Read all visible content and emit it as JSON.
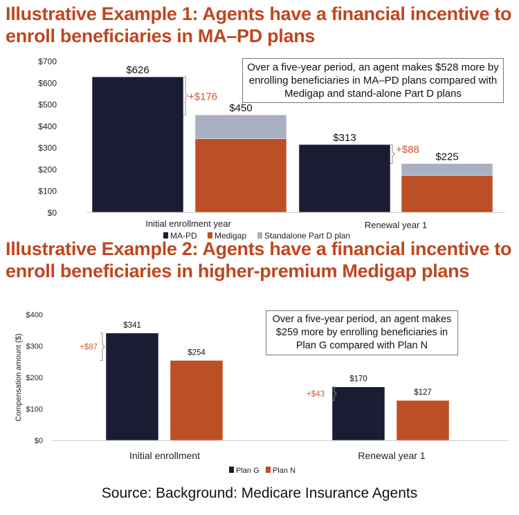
{
  "source": "Source: Background: Medicare Insurance Agents",
  "colors": {
    "dark": "#1a1c33",
    "orange": "#bd4f25",
    "gray": "#a9b0c2",
    "accent": "#d0572c"
  },
  "chart_data": [
    {
      "type": "bar",
      "stacked": true,
      "title": "Illustrative Example 1: Agents have a financial incentive to enroll beneficiaries in MA–PD plans",
      "note": "Over a five-year period, an agent makes $528 more by enrolling beneficiaries in MA–PD plans compared with Medigap and stand-alone Part D plans",
      "categories": [
        "Initial enrollment year",
        "Renewal year 1"
      ],
      "bars": [
        {
          "category": "Initial enrollment year",
          "segments": [
            {
              "series": "MA-PD",
              "value": 626
            }
          ],
          "label": "$626"
        },
        {
          "category": "Initial enrollment year",
          "segments": [
            {
              "series": "Medigap",
              "value": 340
            },
            {
              "series": "Standalone Part D plan",
              "value": 110
            }
          ],
          "label": "$450"
        },
        {
          "category": "Renewal year 1",
          "segments": [
            {
              "series": "MA-PD",
              "value": 313
            }
          ],
          "label": "$313"
        },
        {
          "category": "Renewal year 1",
          "segments": [
            {
              "series": "Medigap",
              "value": 170
            },
            {
              "series": "Standalone Part D plan",
              "value": 55
            }
          ],
          "label": "$225"
        }
      ],
      "differences": [
        "+$176",
        "+$88"
      ],
      "series": [
        {
          "name": "MA-PD"
        },
        {
          "name": "Medigap"
        },
        {
          "name": "Standalone Part D plan"
        }
      ],
      "yticks": [
        "$0",
        "$100",
        "$200",
        "$300",
        "$400",
        "$500",
        "$600",
        "$700"
      ],
      "ylim": [
        0,
        700
      ],
      "ylabel": "",
      "legend": "bottom",
      "grid": false
    },
    {
      "type": "bar",
      "title": "Illustrative Example 2: Agents have a financial incentive to enroll beneficiaries in higher-premium Medigap plans",
      "note": "Over a five-year period, an agent makes $259 more by enrolling beneficiaries in Plan G compared with Plan N",
      "categories": [
        "Initial enrollment",
        "Renewal year 1"
      ],
      "series": [
        {
          "name": "Plan G",
          "values": [
            341,
            170
          ],
          "labels": [
            "$341",
            "$170"
          ]
        },
        {
          "name": "Plan N",
          "values": [
            254,
            127
          ],
          "labels": [
            "$254",
            "$127"
          ]
        }
      ],
      "differences": [
        "+$87",
        "+$43"
      ],
      "yticks": [
        "$0",
        "$100",
        "$200",
        "$300",
        "$400"
      ],
      "ylim": [
        0,
        400
      ],
      "ylabel": "Compensation amount ($)",
      "legend": "bottom",
      "grid": false
    }
  ]
}
